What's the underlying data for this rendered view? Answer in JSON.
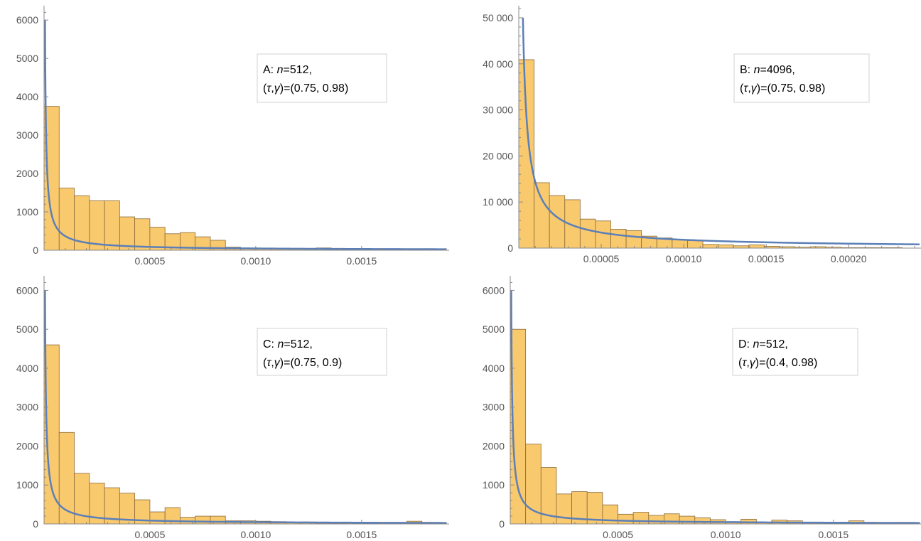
{
  "colors": {
    "bar_fill": "#f9c96e",
    "bar_stroke": "#8a6a3a",
    "curve": "#5b7fb8",
    "axis": "#888888",
    "tick_text": "#555555",
    "legend_border": "#d0d0d0"
  },
  "chart_data": [
    {
      "type": "bar",
      "panel": "A",
      "legend": {
        "prefix": "A: ",
        "n_sym": "n",
        "n_val": "=512,",
        "tau": "τ",
        "gamma": "γ",
        "params": "(0.75, 0.98)"
      },
      "xlim": [
        0,
        0.0019
      ],
      "ylim": [
        0,
        6300
      ],
      "bin_width": 7.14e-05,
      "values": [
        3750,
        1620,
        1420,
        1290,
        1290,
        870,
        820,
        600,
        430,
        460,
        350,
        260,
        80,
        60,
        40,
        50,
        40,
        40,
        60,
        20,
        30,
        20,
        10,
        30,
        20,
        10
      ],
      "curve": {
        "scale": 6000,
        "start_x": 4.5e-06
      },
      "x_ticks": [
        0.0005,
        0.001,
        0.0015
      ],
      "x_tick_labels": [
        "0.0005",
        "0.0010",
        "0.0015"
      ],
      "y_ticks": [
        0,
        1000,
        2000,
        3000,
        4000,
        5000,
        6000
      ],
      "y_tick_labels": [
        "0",
        "1000",
        "2000",
        "3000",
        "4000",
        "5000",
        "6000"
      ]
    },
    {
      "type": "bar",
      "panel": "B",
      "legend": {
        "prefix": "B: ",
        "n_sym": "n",
        "n_val": "=4096,",
        "tau": "τ",
        "gamma": "γ",
        "params": "(0.75, 0.98)"
      },
      "xlim": [
        0,
        0.000243
      ],
      "ylim": [
        0,
        52000
      ],
      "bin_width": 9.3e-06,
      "values": [
        40900,
        14200,
        11400,
        10500,
        6300,
        5900,
        4100,
        3800,
        2600,
        2200,
        1800,
        1600,
        800,
        700,
        500,
        700,
        400,
        300,
        200,
        300,
        200,
        100,
        100,
        100,
        100
      ],
      "curve": {
        "scale": 50000,
        "start_x": 2.5e-06
      },
      "x_ticks": [
        5e-05,
        0.0001,
        0.00015,
        0.0002
      ],
      "x_tick_labels": [
        "0.00005",
        "0.00010",
        "0.00015",
        "0.00020"
      ],
      "y_ticks": [
        0,
        10000,
        20000,
        30000,
        40000,
        50000
      ],
      "y_tick_labels": [
        "0",
        "10 000",
        "20 000",
        "30 000",
        "40 000",
        "50 000"
      ]
    },
    {
      "type": "bar",
      "panel": "C",
      "legend": {
        "prefix": "C: ",
        "n_sym": "n",
        "n_val": "=512,",
        "tau": "τ",
        "gamma": "γ",
        "params": "(0.75, 0.9)"
      },
      "xlim": [
        0,
        0.0019
      ],
      "ylim": [
        0,
        6300
      ],
      "bin_width": 7.14e-05,
      "values": [
        4600,
        2350,
        1300,
        1050,
        930,
        790,
        620,
        310,
        420,
        170,
        200,
        200,
        80,
        80,
        70,
        60,
        40,
        50,
        20,
        20,
        40,
        20,
        20,
        10,
        70,
        40
      ],
      "curve": {
        "scale": 6000,
        "start_x": 4.5e-06
      },
      "x_ticks": [
        0.0005,
        0.001,
        0.0015
      ],
      "x_tick_labels": [
        "0.0005",
        "0.0010",
        "0.0015"
      ],
      "y_ticks": [
        0,
        1000,
        2000,
        3000,
        4000,
        5000,
        6000
      ],
      "y_tick_labels": [
        "0",
        "1000",
        "2000",
        "3000",
        "4000",
        "5000",
        "6000"
      ]
    },
    {
      "type": "bar",
      "panel": "D",
      "legend": {
        "prefix": "D: ",
        "n_sym": "n",
        "n_val": "=512,",
        "tau": "τ",
        "gamma": "γ",
        "params": "(0.4, 0.98)"
      },
      "xlim": [
        0,
        0.0019
      ],
      "ylim": [
        0,
        6300
      ],
      "bin_width": 7.14e-05,
      "values": [
        5000,
        2050,
        1450,
        770,
        830,
        810,
        490,
        250,
        300,
        220,
        260,
        200,
        160,
        110,
        60,
        120,
        40,
        100,
        80,
        40,
        30,
        20,
        80,
        20,
        10,
        10
      ],
      "curve": {
        "scale": 6000,
        "start_x": 4.5e-06
      },
      "x_ticks": [
        0.0005,
        0.001,
        0.0015
      ],
      "x_tick_labels": [
        "0.0005",
        "0.0010",
        "0.0015"
      ],
      "y_ticks": [
        0,
        1000,
        2000,
        3000,
        4000,
        5000,
        6000
      ],
      "y_tick_labels": [
        "0",
        "1000",
        "2000",
        "3000",
        "4000",
        "5000",
        "6000"
      ]
    }
  ]
}
